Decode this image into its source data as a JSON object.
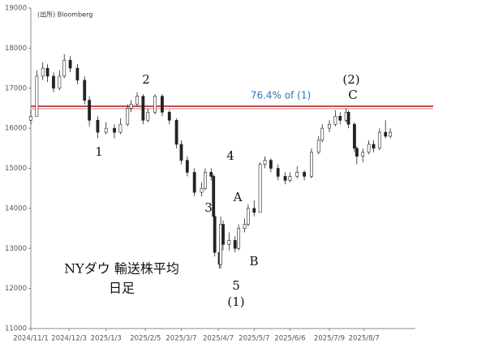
{
  "chart_data": {
    "type": "candlestick",
    "title": "NYダウ 輸送株平均",
    "subtitle": "日足",
    "source": "(出所) Bloomberg",
    "x": [
      "2024/11/1",
      "2024/11/6",
      "2024/11/11",
      "2024/11/15",
      "2024/11/20",
      "2024/11/25",
      "2024/11/29",
      "2024/12/4",
      "2024/12/10",
      "2024/12/16",
      "2024/12/20",
      "2024/12/27",
      "2025/1/3",
      "2025/1/10",
      "2025/1/15",
      "2025/1/21",
      "2025/1/24",
      "2025/1/29",
      "2025/2/3",
      "2025/2/7",
      "2025/2/13",
      "2025/2/19",
      "2025/2/25",
      "2025/3/3",
      "2025/3/7",
      "2025/3/12",
      "2025/3/18",
      "2025/3/24",
      "2025/3/27",
      "2025/4/1",
      "2025/4/3",
      "2025/4/4",
      "2025/4/8",
      "2025/4/9",
      "2025/4/11",
      "2025/4/16",
      "2025/4/21",
      "2025/4/24",
      "2025/4/29",
      "2025/5/2",
      "2025/5/7",
      "2025/5/12",
      "2025/5/16",
      "2025/5/21",
      "2025/5/27",
      "2025/6/2",
      "2025/6/6",
      "2025/6/12",
      "2025/6/18",
      "2025/6/24",
      "2025/6/30",
      "2025/7/3",
      "2025/7/9",
      "2025/7/14",
      "2025/7/18",
      "2025/7/23",
      "2025/7/25",
      "2025/7/30",
      "2025/8/1",
      "2025/8/6",
      "2025/8/11",
      "2025/8/15",
      "2025/8/20",
      "2025/8/25",
      "2025/8/29"
    ],
    "open": [
      16200,
      16300,
      17300,
      17500,
      17300,
      17000,
      17300,
      17700,
      17500,
      17200,
      16700,
      16200,
      15900,
      16000,
      15900,
      16100,
      16500,
      16600,
      16800,
      16200,
      16400,
      16800,
      16400,
      16200,
      15600,
      15200,
      14900,
      14400,
      14500,
      14900,
      14800,
      13800,
      12900,
      12600,
      13600,
      13100,
      13200,
      13000,
      13500,
      13600,
      14000,
      13900,
      15100,
      15200,
      15000,
      14800,
      14700,
      14800,
      14900,
      14800,
      15400,
      15700,
      16000,
      16100,
      16300,
      16200,
      16400,
      16100,
      15500,
      15300,
      15400,
      15600,
      15500,
      15900,
      15800
    ],
    "high": [
      16450,
      17450,
      17650,
      17600,
      17400,
      17450,
      17850,
      17800,
      17600,
      17300,
      16800,
      16300,
      16150,
      16100,
      16250,
      16600,
      16700,
      16900,
      16850,
      16500,
      16850,
      16850,
      16450,
      16250,
      15700,
      15300,
      15000,
      14650,
      15000,
      15000,
      14850,
      13900,
      13300,
      13800,
      13700,
      13400,
      13300,
      13600,
      13750,
      14100,
      14200,
      15150,
      15300,
      15250,
      15100,
      14900,
      14900,
      15050,
      14950,
      15500,
      15800,
      16100,
      16200,
      16450,
      16400,
      16500,
      16450,
      16150,
      15550,
      15500,
      15700,
      15700,
      16000,
      16200,
      16000
    ],
    "low": [
      16100,
      16300,
      17200,
      17150,
      16900,
      16950,
      17250,
      17400,
      17100,
      16600,
      16050,
      15750,
      15850,
      15750,
      15850,
      16050,
      16400,
      16550,
      16100,
      16150,
      16350,
      16300,
      16100,
      15500,
      15100,
      14800,
      14300,
      14300,
      14450,
      14700,
      13700,
      12800,
      12500,
      12500,
      12950,
      12950,
      12900,
      12950,
      13400,
      13550,
      13800,
      13900,
      15000,
      14900,
      14700,
      14600,
      14650,
      14750,
      14700,
      14750,
      15350,
      15650,
      15900,
      16050,
      16100,
      16150,
      16000,
      15400,
      15100,
      15150,
      15350,
      15400,
      15450,
      15750,
      15750
    ],
    "close": [
      16300,
      17300,
      17500,
      17300,
      17000,
      17300,
      17700,
      17500,
      17200,
      16700,
      16200,
      15900,
      16000,
      15900,
      16100,
      16500,
      16600,
      16800,
      16200,
      16400,
      16800,
      16400,
      16200,
      15600,
      15200,
      14900,
      14400,
      14500,
      14900,
      14800,
      13800,
      12900,
      12600,
      13600,
      13100,
      13200,
      13000,
      13500,
      13600,
      14000,
      13900,
      15100,
      15200,
      15000,
      14800,
      14700,
      14800,
      14900,
      14800,
      15400,
      15700,
      16000,
      16100,
      16300,
      16200,
      16400,
      16100,
      15500,
      15300,
      15400,
      15600,
      15500,
      15900,
      15800,
      15900
    ],
    "color": "#222222",
    "xlim": [
      "2024/11/1",
      "2025/9/19"
    ],
    "xticks": [
      "2024/11/1",
      "2024/12/3",
      "2025/1/3",
      "2025/2/5",
      "2025/3/7",
      "2025/4/7",
      "2025/5/7",
      "2025/6/6",
      "2025/7/9",
      "2025/8/7"
    ],
    "ylim": [
      11000,
      19000
    ],
    "yticks": [
      11000,
      12000,
      13000,
      14000,
      15000,
      16000,
      17000,
      18000,
      19000
    ],
    "reference_line": {
      "value": 16550,
      "label": "76.4% of (1)",
      "color": "#c0504d",
      "label_color": "#2e75b6"
    },
    "annotations": [
      "1",
      "2",
      "3",
      "4",
      "5",
      "(1)",
      "A",
      "B",
      "C",
      "(2)"
    ]
  }
}
